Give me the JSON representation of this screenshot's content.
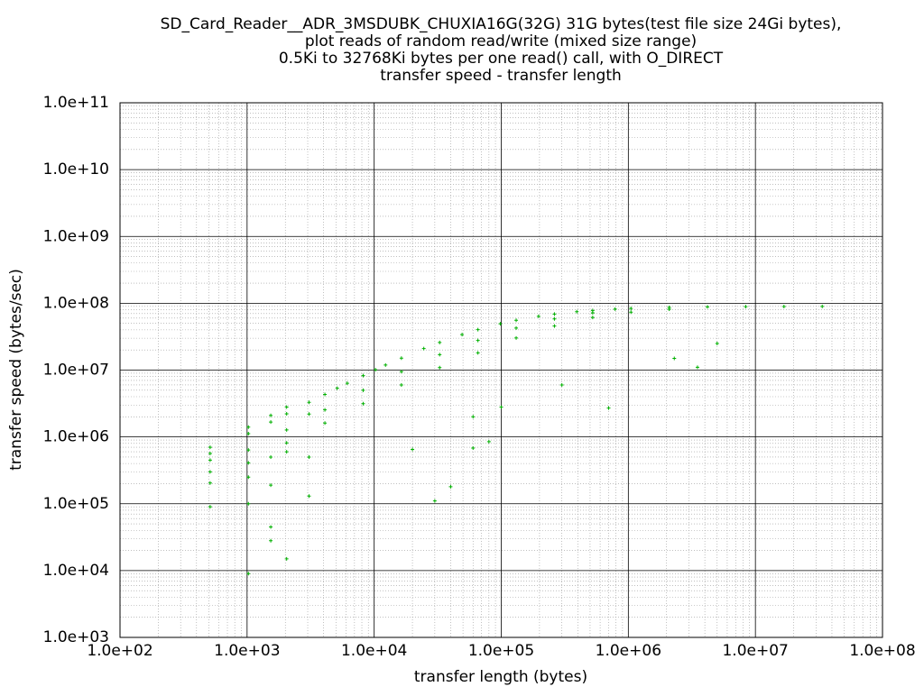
{
  "chart_data": {
    "type": "scatter",
    "title": [
      "SD_Card_Reader__ADR_3MSDUBK_CHUXIA16G(32G) 31G bytes(test file size 24Gi bytes),",
      "plot reads of random read/write (mixed size range)",
      "0.5Ki to 32768Ki bytes per one read() call, with O_DIRECT",
      "transfer speed - transfer length"
    ],
    "x_label": "transfer length (bytes)",
    "y_label": "transfer speed (bytes/sec)",
    "log_x": true,
    "log_y": true,
    "grid": true,
    "color": "#00b000",
    "xlim": [
      100,
      100000000
    ],
    "xticks": [
      {
        "value": 100,
        "label": "1.0e+02"
      },
      {
        "value": 1000,
        "label": "1.0e+03"
      },
      {
        "value": 10000,
        "label": "1.0e+04"
      },
      {
        "value": 100000,
        "label": "1.0e+05"
      },
      {
        "value": 1000000,
        "label": "1.0e+06"
      },
      {
        "value": 10000000,
        "label": "1.0e+07"
      },
      {
        "value": 100000000,
        "label": "1.0e+08"
      }
    ],
    "ylim": [
      1000,
      100000000000
    ],
    "yticks": [
      {
        "value": 1000,
        "label": "1.0e+03"
      },
      {
        "value": 10000,
        "label": "1.0e+04"
      },
      {
        "value": 100000,
        "label": "1.0e+05"
      },
      {
        "value": 1000000,
        "label": "1.0e+06"
      },
      {
        "value": 10000000,
        "label": "1.0e+07"
      },
      {
        "value": 100000000,
        "label": "1.0e+08"
      },
      {
        "value": 1000000000,
        "label": "1.0e+09"
      },
      {
        "value": 10000000000,
        "label": "1.0e+10"
      },
      {
        "value": 100000000000,
        "label": "1.0e+11"
      }
    ],
    "x": [
      512,
      512,
      512,
      512,
      512,
      512,
      1024,
      1024,
      1024,
      1024,
      1024,
      1024,
      1024,
      1536,
      1536,
      1536,
      1536,
      1536,
      1536,
      2048,
      2048,
      2048,
      2048,
      2048,
      2048,
      3072,
      3072,
      3072,
      3072,
      4096,
      4096,
      4096,
      5120,
      6144,
      8192,
      8192,
      8192,
      10240,
      12288,
      16384,
      16384,
      16384,
      20000,
      24576,
      30000,
      32768,
      32768,
      32768,
      40000,
      49152,
      60000,
      60000,
      65536,
      65536,
      65536,
      80000,
      98304,
      100000,
      131072,
      131072,
      131072,
      196608,
      262144,
      262144,
      262144,
      300000,
      393216,
      524288,
      524288,
      524288,
      700000,
      786432,
      1048576,
      1048576,
      2097152,
      2097152,
      2300000,
      3500000,
      5000000,
      4194304,
      8388608,
      16777216,
      33554432
    ],
    "y": [
      565000,
      204000,
      90000,
      300000,
      450000,
      700000,
      1120000,
      638000,
      409000,
      250000,
      1400000,
      100000,
      9000,
      1670000,
      500000,
      2100000,
      190000,
      45000,
      28000,
      2220000,
      1270000,
      815000,
      600000,
      2800000,
      15000,
      3290000,
      2200000,
      500000,
      130000,
      4330000,
      2540000,
      1610000,
      5350000,
      6350000,
      8270000,
      5000000,
      3150000,
      10100000,
      11900000,
      15100000,
      9480000,
      5990000,
      650000,
      21000000,
      110000,
      25900000,
      17000000,
      10900000,
      180000,
      34000000,
      2000000,
      680000,
      40300000,
      27800000,
      18100000,
      850000,
      49300000,
      2800000,
      55600000,
      42500000,
      30300000,
      63700000,
      68800000,
      58300000,
      45600000,
      6000000,
      74600000,
      78000000,
      72000000,
      61200000,
      2700000,
      81600000,
      83500000,
      73700000,
      86700000,
      81500000,
      15000000,
      11000000,
      25000000,
      88300000,
      89100000,
      89500000,
      89800000
    ]
  }
}
